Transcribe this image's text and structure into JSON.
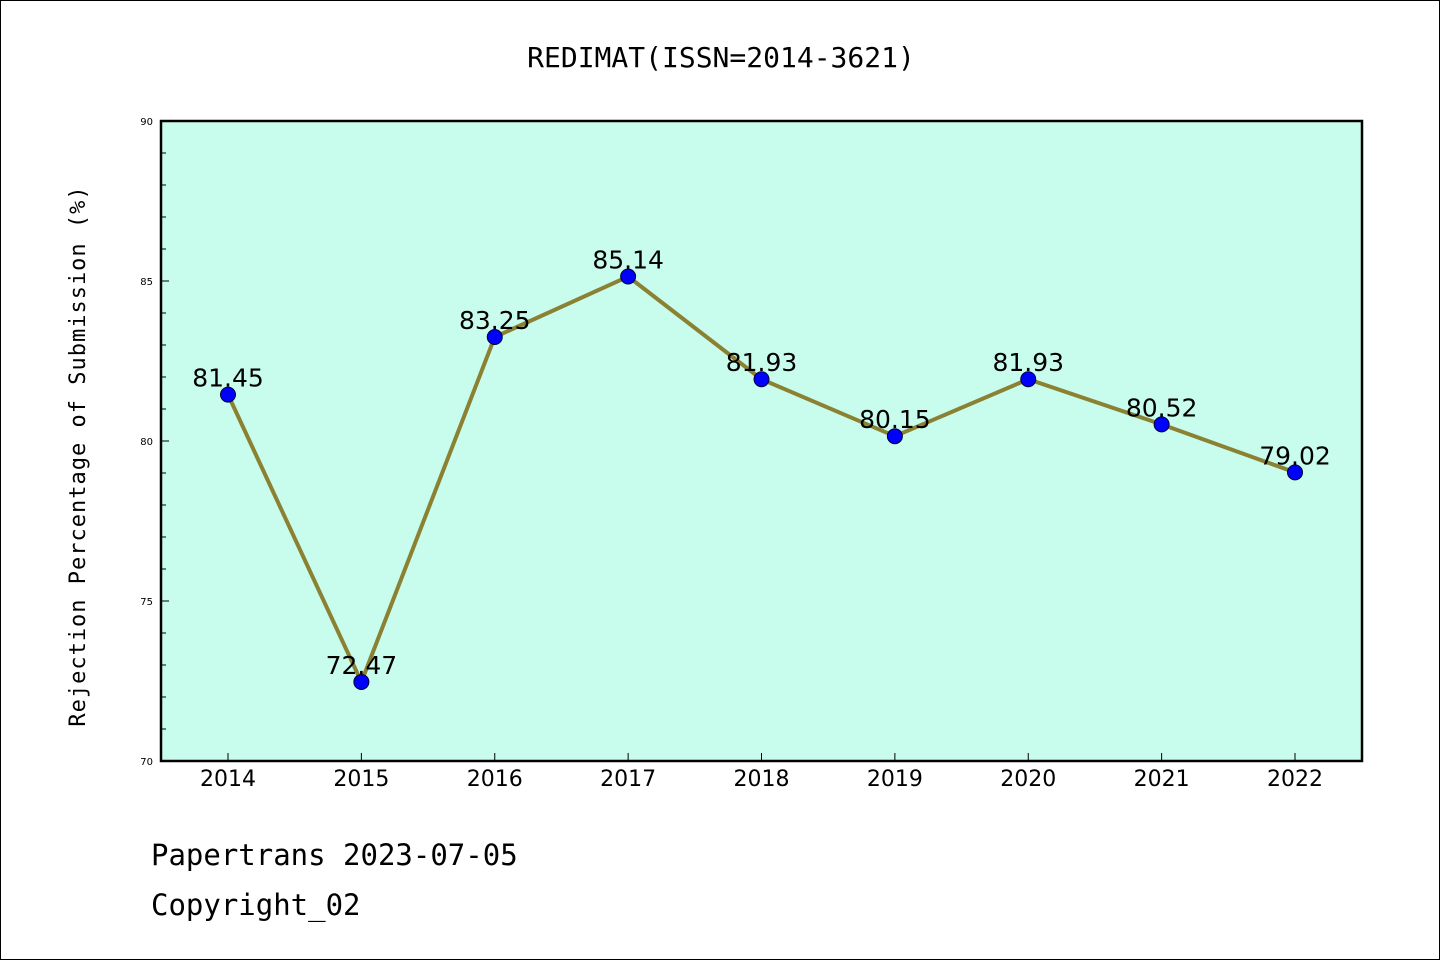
{
  "chart_data": {
    "type": "line",
    "title": "REDIMAT(ISSN=2014-3621)",
    "xlabel": "",
    "ylabel": "Rejection Percentage of Submission (%)",
    "categories": [
      "2014",
      "2015",
      "2016",
      "2017",
      "2018",
      "2019",
      "2020",
      "2021",
      "2022"
    ],
    "series": [
      {
        "values": [
          81.45,
          72.47,
          83.25,
          85.14,
          81.93,
          80.15,
          81.93,
          80.52,
          79.02
        ],
        "labels": [
          "81.45",
          "72.47",
          "83.25",
          "85.14",
          "81.93",
          "80.15",
          "81.93",
          "80.52",
          "79.02"
        ]
      }
    ],
    "ylim": [
      70,
      90
    ],
    "yticks": [
      "70",
      "75",
      "80",
      "85",
      "90"
    ],
    "grid": false,
    "colors": {
      "plot_background": "#c8fcec",
      "line": "#8b8132",
      "marker": "#0000ff"
    }
  },
  "footer": {
    "line1": "Papertrans 2023-07-05",
    "line2": "Copyright_02"
  }
}
